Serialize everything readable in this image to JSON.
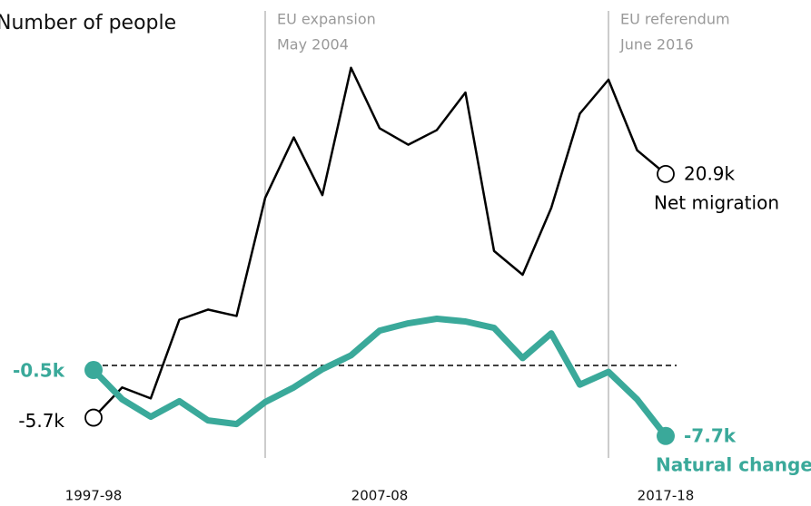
{
  "chart_data": {
    "type": "line",
    "title": "Number of people",
    "categories": [
      "1997-98",
      null,
      null,
      null,
      null,
      null,
      null,
      null,
      null,
      null,
      "2007-08",
      null,
      null,
      null,
      null,
      null,
      null,
      null,
      null,
      null,
      "2017-18"
    ],
    "series": [
      {
        "name": "Net migration",
        "color": "#000000",
        "values": [
          -5.7,
          -2.4,
          -3.6,
          5.0,
          6.1,
          5.4,
          18.3,
          24.9,
          18.6,
          32.5,
          25.9,
          24.1,
          25.7,
          29.8,
          12.5,
          9.9,
          17.2,
          27.5,
          31.2,
          23.5,
          20.9
        ],
        "value_labels": [
          "-5.7k",
          null,
          null,
          null,
          null,
          null,
          null,
          null,
          null,
          null,
          null,
          null,
          null,
          null,
          null,
          null,
          null,
          null,
          null,
          null,
          "20.9k"
        ]
      },
      {
        "name": "Natural change",
        "color": "#3aa99a",
        "values": [
          -0.5,
          -3.7,
          -5.6,
          -3.9,
          -6.0,
          -6.4,
          -4.0,
          -2.4,
          -0.4,
          1.1,
          3.8,
          4.6,
          5.1,
          4.8,
          4.1,
          0.8,
          3.5,
          -2.1,
          -0.7,
          -3.7,
          -7.7
        ],
        "value_labels": [
          "-0.5k",
          null,
          null,
          null,
          null,
          null,
          null,
          null,
          null,
          null,
          null,
          null,
          null,
          null,
          null,
          null,
          null,
          null,
          null,
          null,
          "-7.7k"
        ]
      }
    ],
    "ylim": [
      -15,
      40
    ],
    "reference_lines": [
      0
    ],
    "annotations": [
      {
        "text": [
          "EU expansion",
          "May 2004"
        ],
        "x_index": 6
      },
      {
        "text": [
          "EU referendum",
          "June 2016"
        ],
        "x_index": 18
      }
    ]
  }
}
